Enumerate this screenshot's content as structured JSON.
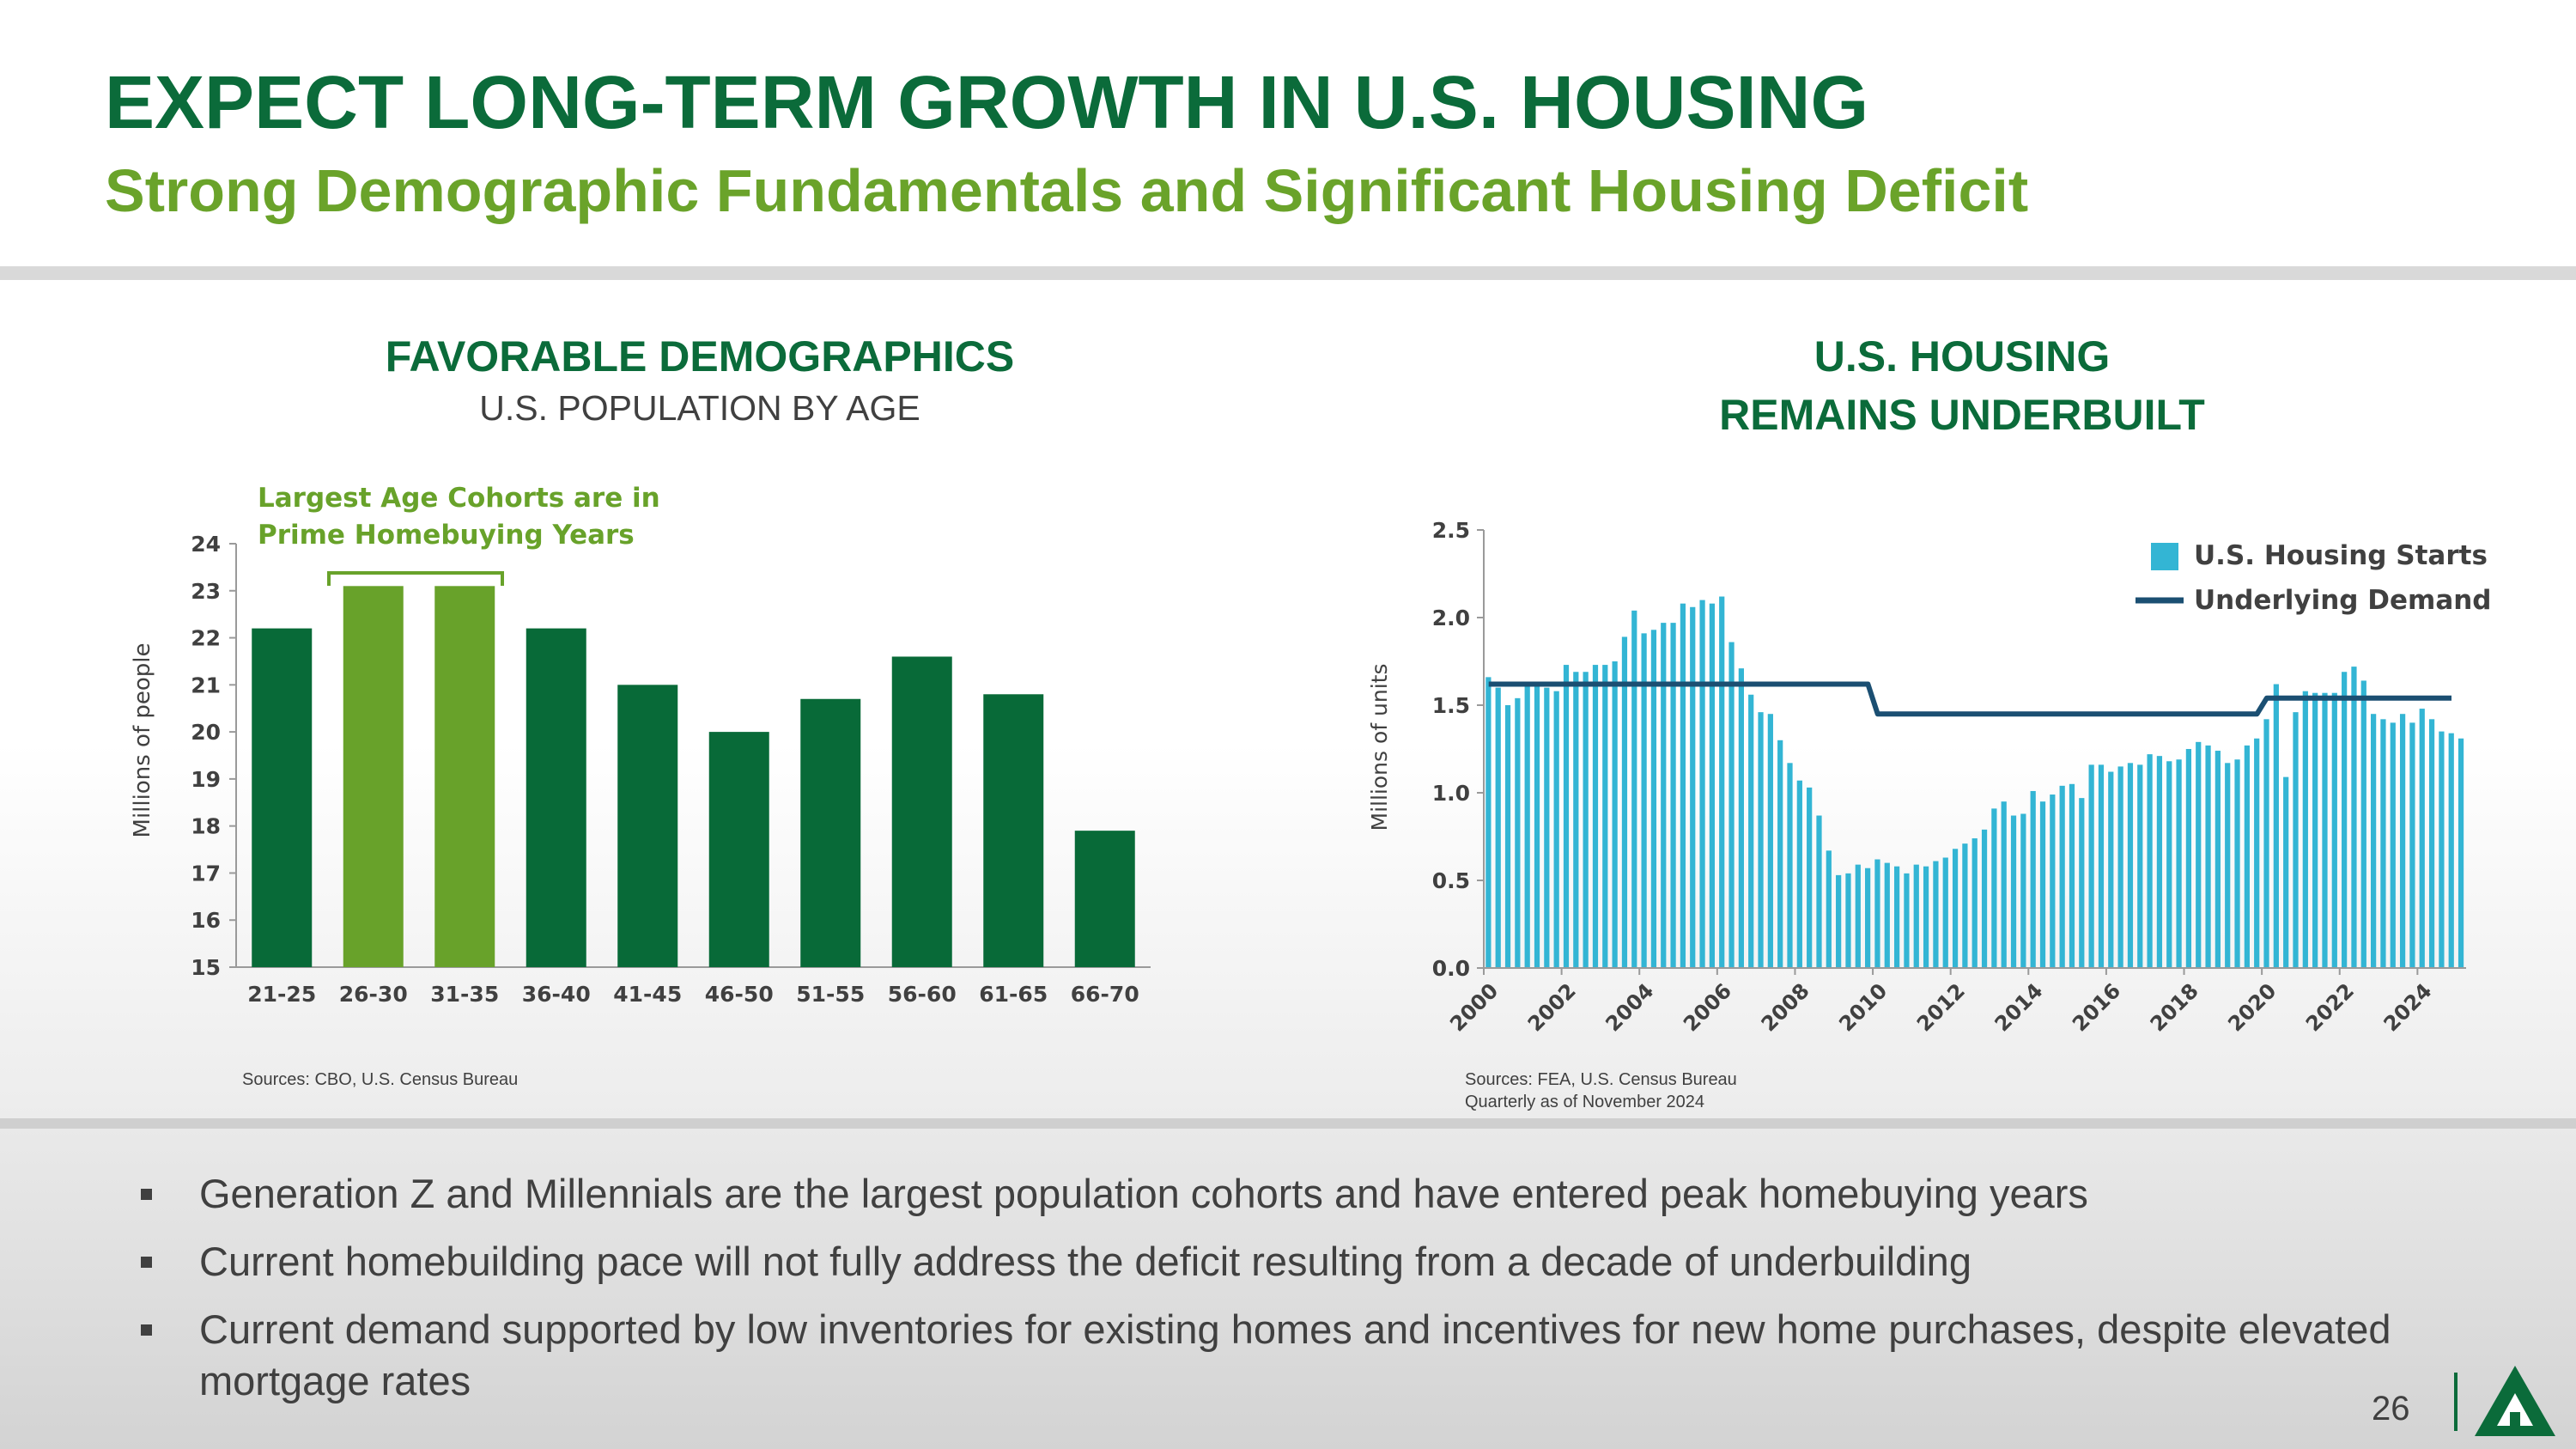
{
  "slide": {
    "title": "EXPECT LONG-TERM GROWTH IN U.S. HOUSING",
    "subtitle": "Strong Demographic Fundamentals and Significant Housing Deficit",
    "page_number": "26",
    "logo_icon": "triangle-house-logo-icon"
  },
  "left_panel": {
    "title": "FAVORABLE DEMOGRAPHICS",
    "subtitle": "U.S. POPULATION BY AGE",
    "annotation_line1": "Largest Age Cohorts are in",
    "annotation_line2": "Prime Homebuying Years",
    "source": "Sources: CBO, U.S. Census Bureau"
  },
  "right_panel": {
    "title_line1": "U.S. HOUSING",
    "title_line2": "REMAINS UNDERBUILT",
    "source_line1": "Sources: FEA, U.S. Census Bureau",
    "source_line2": "Quarterly as of November 2024"
  },
  "bullets": [
    "Generation Z and Millennials are the largest population cohorts and have entered peak homebuying years",
    "Current homebuilding pace will not fully address the deficit resulting from a decade of underbuilding",
    "Current demand supported by low inventories for existing homes and incentives for new home purchases, despite elevated mortgage rates"
  ],
  "colors": {
    "dark_green": "#0b6b3a",
    "light_green": "#6aa32a",
    "bar_green": "#086a38",
    "highlight_green": "#68a22a",
    "starts_blue": "#33b5d4",
    "demand_navy": "#1b4f72",
    "text_gray": "#404040"
  },
  "chart_data": [
    {
      "type": "bar",
      "title": "U.S. POPULATION BY AGE",
      "xlabel": "",
      "ylabel": "Millions of people",
      "categories": [
        "21-25",
        "26-30",
        "31-35",
        "36-40",
        "41-45",
        "46-50",
        "51-55",
        "56-60",
        "61-65",
        "66-70"
      ],
      "values": [
        22.2,
        23.1,
        23.1,
        22.2,
        21.0,
        20.0,
        20.7,
        21.6,
        20.8,
        17.9
      ],
      "highlighted": [
        "26-30",
        "31-35"
      ],
      "ylim": [
        15,
        24
      ],
      "yticks": [
        15,
        16,
        17,
        18,
        19,
        20,
        21,
        22,
        23,
        24
      ],
      "grid": false
    },
    {
      "type": "bar",
      "title": "U.S. HOUSING REMAINS UNDERBUILT",
      "xlabel": "",
      "ylabel": "Millions of units",
      "ylim": [
        0,
        2.5
      ],
      "yticks": [
        "0.0",
        "0.5",
        "1.0",
        "1.5",
        "2.0",
        "2.5"
      ],
      "xticks": [
        "2000",
        "2002",
        "2004",
        "2006",
        "2008",
        "2010",
        "2012",
        "2014",
        "2016",
        "2018",
        "2020",
        "2022",
        "2024"
      ],
      "x_start_year": 2000,
      "periods_per_year": 4,
      "legend_position": "top-right",
      "grid": false,
      "series": [
        {
          "name": "U.S. Housing Starts",
          "type": "bar",
          "values": [
            1.66,
            1.6,
            1.5,
            1.54,
            1.62,
            1.61,
            1.6,
            1.58,
            1.73,
            1.69,
            1.69,
            1.73,
            1.73,
            1.75,
            1.89,
            2.04,
            1.91,
            1.93,
            1.97,
            1.97,
            2.08,
            2.06,
            2.1,
            2.08,
            2.12,
            1.86,
            1.71,
            1.56,
            1.46,
            1.45,
            1.3,
            1.17,
            1.07,
            1.03,
            0.87,
            0.67,
            0.53,
            0.54,
            0.59,
            0.57,
            0.62,
            0.6,
            0.58,
            0.54,
            0.59,
            0.58,
            0.61,
            0.63,
            0.68,
            0.71,
            0.74,
            0.79,
            0.91,
            0.95,
            0.87,
            0.88,
            1.01,
            0.95,
            0.99,
            1.04,
            1.05,
            0.97,
            1.16,
            1.16,
            1.12,
            1.15,
            1.17,
            1.16,
            1.22,
            1.21,
            1.18,
            1.19,
            1.25,
            1.29,
            1.27,
            1.24,
            1.17,
            1.19,
            1.27,
            1.31,
            1.42,
            1.62,
            1.09,
            1.46,
            1.58,
            1.57,
            1.57,
            1.57,
            1.69,
            1.72,
            1.64,
            1.45,
            1.42,
            1.4,
            1.45,
            1.4,
            1.48,
            1.42,
            1.35,
            1.34,
            1.31
          ]
        },
        {
          "name": "Underlying Demand",
          "type": "line",
          "points": [
            [
              2000.0,
              1.62
            ],
            [
              2009.75,
              1.62
            ],
            [
              2010.0,
              1.45
            ],
            [
              2019.75,
              1.45
            ],
            [
              2020.0,
              1.54
            ],
            [
              2024.75,
              1.54
            ]
          ]
        }
      ]
    }
  ]
}
